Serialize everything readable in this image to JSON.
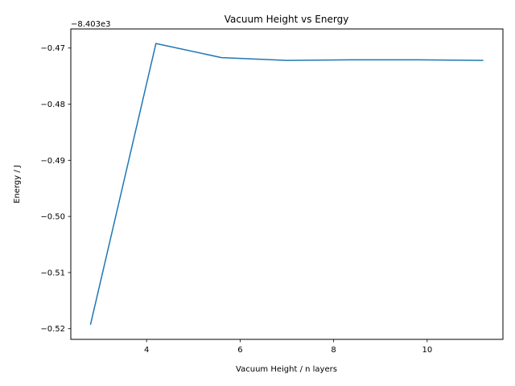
{
  "chart_data": {
    "type": "line",
    "title": "Vacuum Height vs Energy",
    "xlabel": "Vacuum Height / n layers",
    "ylabel": "Energy / J",
    "offset_text": "−8.403e3",
    "xlim": [
      2.38,
      11.62
    ],
    "ylim": [
      -0.5219,
      -0.4666
    ],
    "xticks": [
      4,
      6,
      8,
      10
    ],
    "xtick_labels": [
      "4",
      "6",
      "8",
      "10"
    ],
    "yticks": [
      -0.52,
      -0.51,
      -0.5,
      -0.49,
      -0.48,
      -0.47
    ],
    "ytick_labels": [
      "−0.52",
      "−0.51",
      "−0.50",
      "−0.49",
      "−0.48",
      "−0.47"
    ],
    "grid": false,
    "series": [
      {
        "color": "#1f77b4",
        "x": [
          2.8,
          4.2,
          5.6,
          7.0,
          8.4,
          9.8,
          11.2
        ],
        "y": [
          -0.5193,
          -0.4692,
          -0.4717,
          -0.4722,
          -0.4721,
          -0.4721,
          -0.4722
        ]
      }
    ]
  }
}
